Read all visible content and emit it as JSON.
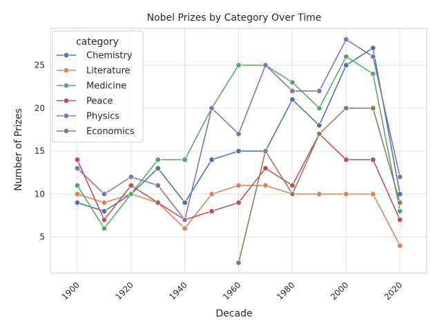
{
  "chart_data": {
    "type": "line",
    "title": "Nobel Prizes by Category Over Time",
    "xlabel": "Decade",
    "ylabel": "Number of Prizes",
    "xlim": [
      1890,
      2030
    ],
    "ylim": [
      0.8,
      29.3
    ],
    "x_ticks": [
      1900,
      1920,
      1940,
      1960,
      1980,
      2000,
      2020
    ],
    "y_ticks": [
      5,
      10,
      15,
      20,
      25
    ],
    "x_tick_rotation": 45,
    "grid": true,
    "legend": {
      "title": "category",
      "placement": "top-left"
    },
    "series": [
      {
        "name": "Chemistry",
        "color": "#4c72b0",
        "x": [
          1900,
          1910,
          1920,
          1930,
          1940,
          1950,
          1960,
          1970,
          1980,
          1990,
          2000,
          2010,
          2020
        ],
        "y": [
          9,
          8,
          10,
          13,
          9,
          14,
          15,
          15,
          21,
          18,
          25,
          27,
          10
        ]
      },
      {
        "name": "Literature",
        "color": "#dd8452",
        "x": [
          1900,
          1910,
          1920,
          1930,
          1940,
          1950,
          1960,
          1970,
          1980,
          1990,
          2000,
          2010,
          2020
        ],
        "y": [
          10,
          9,
          10,
          9,
          6,
          10,
          11,
          11,
          10,
          10,
          10,
          10,
          4
        ]
      },
      {
        "name": "Medicine",
        "color": "#55a868",
        "x": [
          1900,
          1910,
          1920,
          1930,
          1940,
          1950,
          1960,
          1970,
          1980,
          1990,
          2000,
          2010,
          2020
        ],
        "y": [
          11,
          6,
          10,
          14,
          14,
          20,
          25,
          25,
          23,
          20,
          26,
          24,
          8
        ]
      },
      {
        "name": "Peace",
        "color": "#c44e52",
        "x": [
          1900,
          1910,
          1920,
          1930,
          1940,
          1950,
          1960,
          1970,
          1980,
          1990,
          2000,
          2010,
          2020
        ],
        "y": [
          14,
          7,
          11,
          9,
          7,
          8,
          9,
          13,
          11,
          17,
          14,
          14,
          7
        ]
      },
      {
        "name": "Physics",
        "color": "#8172b3",
        "x": [
          1900,
          1910,
          1920,
          1930,
          1940,
          1950,
          1960,
          1970,
          1980,
          1990,
          2000,
          2010,
          2020
        ],
        "y": [
          13,
          10,
          12,
          11,
          7,
          20,
          17,
          25,
          22,
          22,
          28,
          26,
          12
        ]
      },
      {
        "name": "Economics",
        "color": "#937860",
        "x": [
          1960,
          1970,
          1980,
          1990,
          2000,
          2010,
          2020
        ],
        "y": [
          2,
          15,
          10,
          17,
          20,
          20,
          9
        ]
      }
    ]
  }
}
